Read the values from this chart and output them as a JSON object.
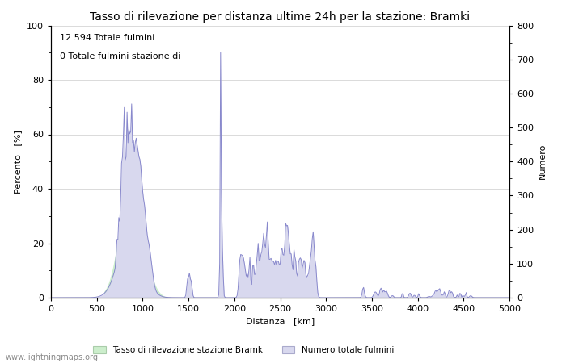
{
  "title": "Tasso di rilevazione per distanza ultime 24h per la stazione: Bramki",
  "xlabel": "Distanza   [km]",
  "ylabel_left": "Percento   [%]",
  "ylabel_right": "Numero",
  "xlim": [
    0,
    5000
  ],
  "ylim_left": [
    0,
    100
  ],
  "ylim_right": [
    0,
    800
  ],
  "xticks": [
    0,
    500,
    1000,
    1500,
    2000,
    2500,
    3000,
    3500,
    4000,
    4500,
    5000
  ],
  "yticks_left": [
    0,
    20,
    40,
    60,
    80,
    100
  ],
  "yticks_right": [
    0,
    100,
    200,
    300,
    400,
    500,
    600,
    700,
    800
  ],
  "annotation_line1": "12.594 Totale fulmini",
  "annotation_line2": "0 Totale fulmini stazione di",
  "legend_label_green": "Tasso di rilevazione stazione Bramki",
  "legend_label_blue": "Numero totale fulmini",
  "watermark": "www.lightningmaps.org",
  "line_color": "#8888cc",
  "fill_color_blue": "#d8d8ee",
  "fill_color_green": "#cceecc",
  "background_color": "#ffffff",
  "grid_color": "#cccccc",
  "title_fontsize": 10,
  "label_fontsize": 8,
  "tick_fontsize": 8,
  "annotation_fontsize": 8,
  "watermark_fontsize": 7
}
